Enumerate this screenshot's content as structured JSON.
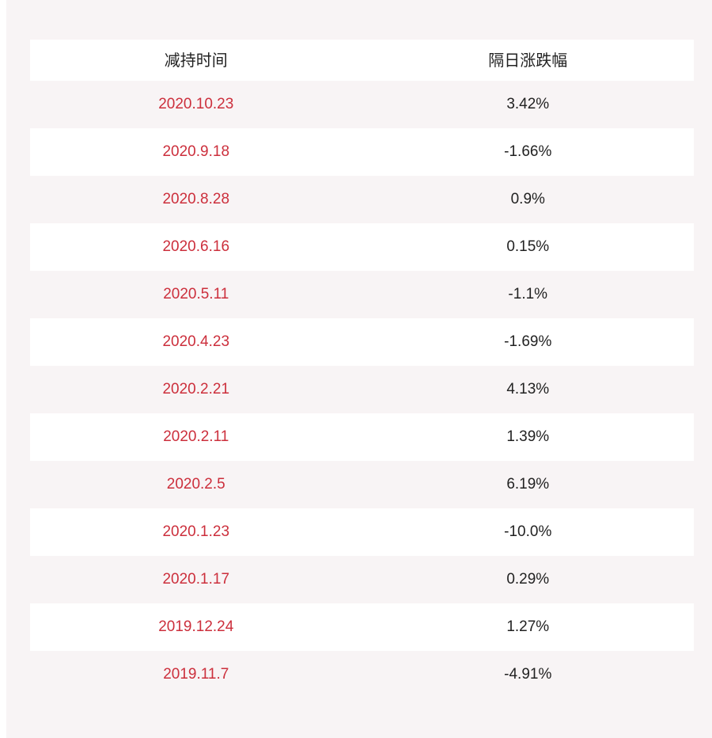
{
  "table": {
    "headers": {
      "date": "减持时间",
      "change": "隔日涨跌幅"
    },
    "rows": [
      {
        "date": "2020.10.23",
        "change": "3.42%"
      },
      {
        "date": "2020.9.18",
        "change": "-1.66%"
      },
      {
        "date": "2020.8.28",
        "change": "0.9%"
      },
      {
        "date": "2020.6.16",
        "change": "0.15%"
      },
      {
        "date": "2020.5.11",
        "change": "-1.1%"
      },
      {
        "date": "2020.4.23",
        "change": "-1.69%"
      },
      {
        "date": "2020.2.21",
        "change": "4.13%"
      },
      {
        "date": "2020.2.11",
        "change": "1.39%"
      },
      {
        "date": "2020.2.5",
        "change": "6.19%"
      },
      {
        "date": "2020.1.23",
        "change": "-10.0%"
      },
      {
        "date": "2020.1.17",
        "change": "0.29%"
      },
      {
        "date": "2019.12.24",
        "change": "1.27%"
      },
      {
        "date": "2019.11.7",
        "change": "-4.91%"
      }
    ]
  },
  "colors": {
    "date_text": "#cc2f3c",
    "value_text": "#222222",
    "panel_background": "#f8f4f5",
    "stripe_background": "#ffffff"
  }
}
